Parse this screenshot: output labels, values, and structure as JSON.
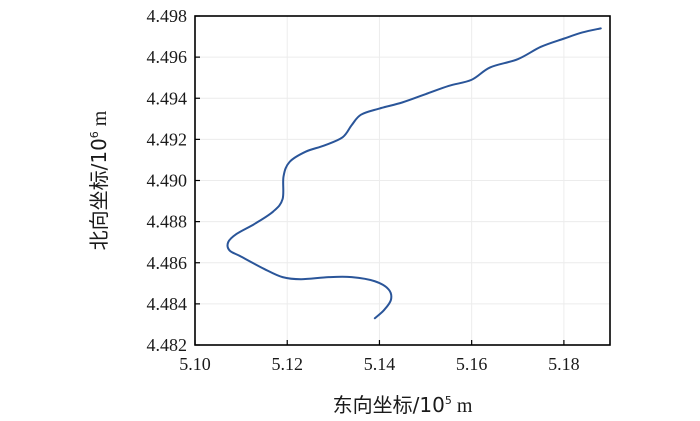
{
  "chart_data": {
    "type": "line",
    "title": "",
    "xlabel": {
      "prefix": "东向坐标/10",
      "exp": "5",
      "suffix": " m"
    },
    "ylabel": {
      "prefix": "北向坐标/10",
      "exp": "6",
      "suffix": " m"
    },
    "xlim": [
      5.1,
      5.19
    ],
    "ylim": [
      4.482,
      4.498
    ],
    "x_ticks": [
      5.1,
      5.12,
      5.14,
      5.16,
      5.18
    ],
    "x_tick_labels": [
      "5.10",
      "5.12",
      "5.14",
      "5.16",
      "5.18"
    ],
    "y_ticks": [
      4.482,
      4.484,
      4.486,
      4.488,
      4.49,
      4.492,
      4.494,
      4.496,
      4.498
    ],
    "y_tick_labels": [
      "4.482",
      "4.484",
      "4.486",
      "4.488",
      "4.490",
      "4.492",
      "4.494",
      "4.496",
      "4.498"
    ],
    "grid": true,
    "legend": "none",
    "series": [
      {
        "color": "#2a5599",
        "points": [
          [
            5.139,
            4.4833
          ],
          [
            5.141,
            4.4837
          ],
          [
            5.1425,
            4.4842
          ],
          [
            5.142,
            4.4847
          ],
          [
            5.139,
            4.4851
          ],
          [
            5.134,
            4.4853
          ],
          [
            5.129,
            4.4853
          ],
          [
            5.123,
            4.4852
          ],
          [
            5.119,
            4.4853
          ],
          [
            5.115,
            4.4857
          ],
          [
            5.11,
            4.4863
          ],
          [
            5.1075,
            4.4866
          ],
          [
            5.1072,
            4.487
          ],
          [
            5.109,
            4.4874
          ],
          [
            5.113,
            4.4879
          ],
          [
            5.117,
            4.4885
          ],
          [
            5.119,
            4.4891
          ],
          [
            5.1192,
            4.4902
          ],
          [
            5.1205,
            4.4909
          ],
          [
            5.124,
            4.4914
          ],
          [
            5.128,
            4.4917
          ],
          [
            5.132,
            4.4921
          ],
          [
            5.134,
            4.4927
          ],
          [
            5.136,
            4.4932
          ],
          [
            5.14,
            4.4935
          ],
          [
            5.145,
            4.4938
          ],
          [
            5.15,
            4.4942
          ],
          [
            5.155,
            4.4946
          ],
          [
            5.16,
            4.4949
          ],
          [
            5.164,
            4.4955
          ],
          [
            5.17,
            4.4959
          ],
          [
            5.175,
            4.4965
          ],
          [
            5.18,
            4.4969
          ],
          [
            5.184,
            4.4972
          ],
          [
            5.188,
            4.4974
          ]
        ]
      }
    ]
  }
}
